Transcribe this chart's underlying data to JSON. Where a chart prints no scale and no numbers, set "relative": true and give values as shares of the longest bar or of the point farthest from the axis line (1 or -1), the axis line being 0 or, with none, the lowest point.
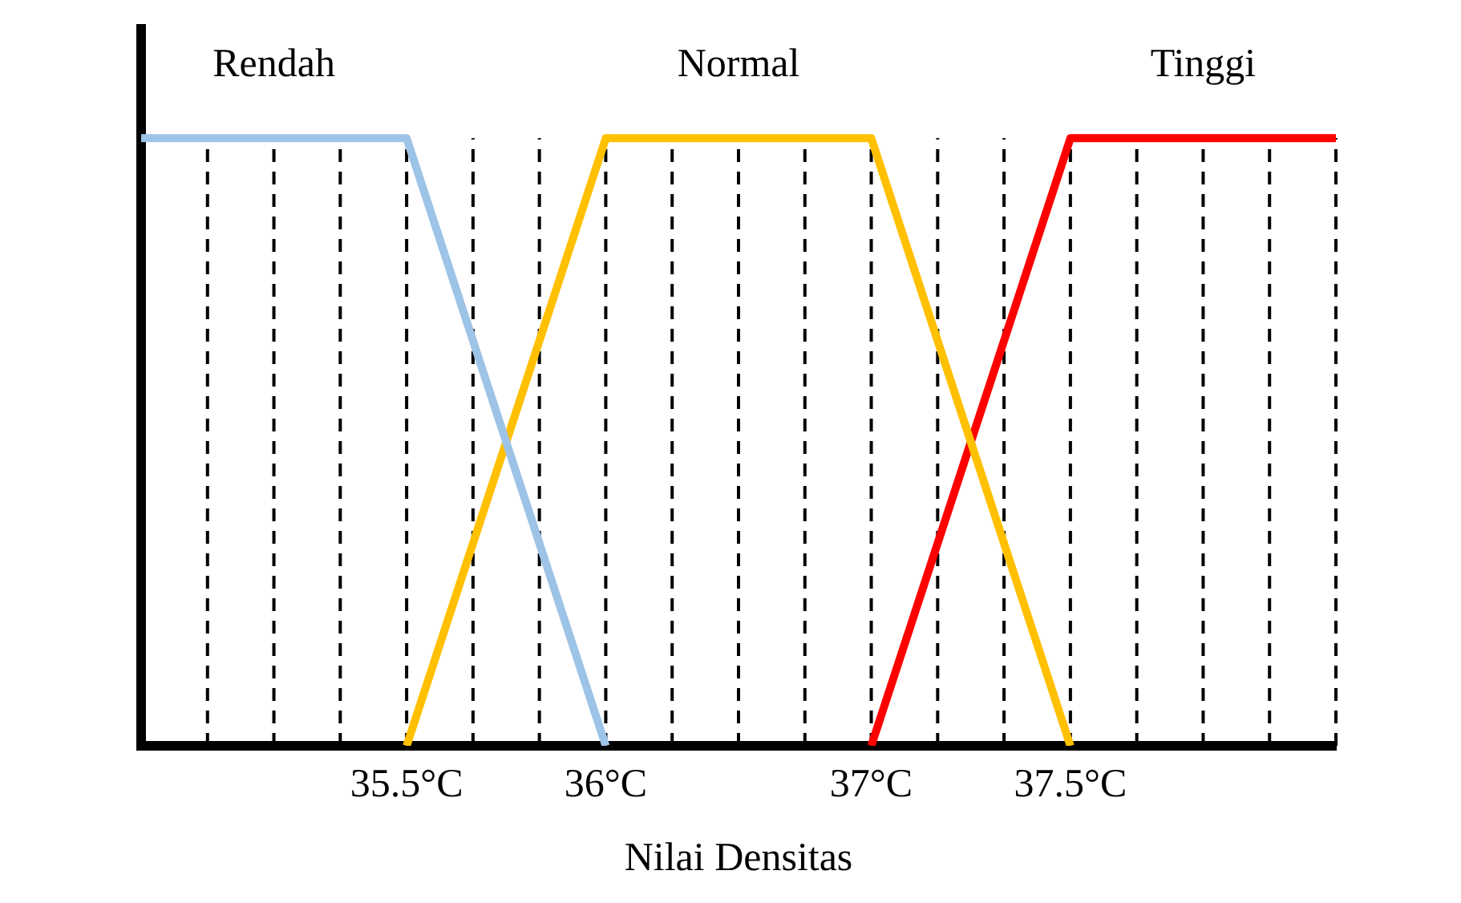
{
  "chart_data": {
    "type": "line",
    "relative": true,
    "xlabel": "Nilai Densitas",
    "grid": "x",
    "marker": "none",
    "categories": [
      null,
      null,
      null,
      null,
      "35.5°C",
      null,
      null,
      "36°C",
      null,
      null,
      null,
      "37°C",
      null,
      null,
      "37.5°C",
      null,
      null,
      null,
      null
    ],
    "series": [
      {
        "name": "Rendah",
        "color": "#9dc3e6",
        "values": [
          1,
          null,
          null,
          null,
          1,
          null,
          null,
          0,
          null,
          null,
          null,
          null,
          null,
          null,
          null,
          null,
          null,
          null,
          null
        ]
      },
      {
        "name": "Normal",
        "color": "#ffc000",
        "values": [
          null,
          null,
          null,
          null,
          0,
          null,
          null,
          1,
          null,
          null,
          null,
          1,
          null,
          null,
          0,
          null,
          null,
          null,
          null
        ]
      },
      {
        "name": "Tinggi",
        "color": "#ff0000",
        "values": [
          null,
          null,
          null,
          null,
          null,
          null,
          null,
          null,
          null,
          null,
          null,
          0,
          null,
          null,
          1,
          null,
          null,
          null,
          1
        ]
      }
    ]
  }
}
